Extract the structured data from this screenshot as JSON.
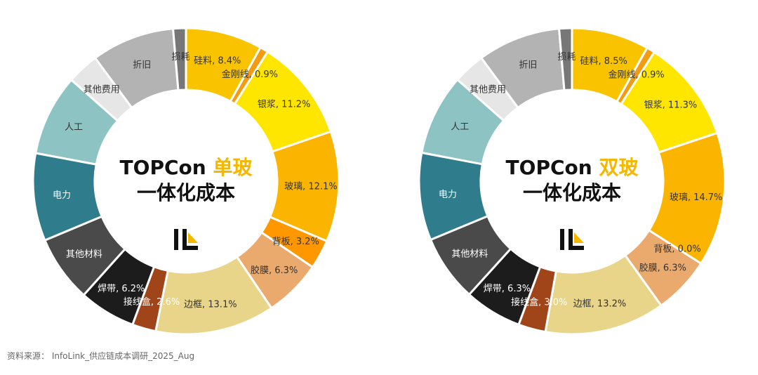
{
  "source_note": "资料来源： InfoLink_供应链成本调研_2025_Aug",
  "chart_data": [
    {
      "type": "donut",
      "title_line1_prefix": "TOPCon ",
      "title_line1_highlight": "单玻",
      "title_line2": "一体化成本",
      "highlight_color": "#F5B800",
      "slices": [
        {
          "name": "硅料",
          "value": 8.4,
          "label": "硅料, 8.4%",
          "color": "#F9C300"
        },
        {
          "name": "金刚线",
          "value": 0.9,
          "label": "金刚线, 0.9%",
          "color": "#F39C12"
        },
        {
          "name": "银浆",
          "value": 11.2,
          "label": "银浆, 11.2%",
          "color": "#FFE600"
        },
        {
          "name": "玻璃",
          "value": 12.1,
          "label": "玻璃, 12.1%",
          "color": "#FBB400"
        },
        {
          "name": "背板",
          "value": 3.2,
          "label": "背板, 3.2%",
          "color": "#FF9800"
        },
        {
          "name": "胶膜",
          "value": 6.3,
          "label": "胶膜, 6.3%",
          "color": "#EAAA6E"
        },
        {
          "name": "边框",
          "value": 13.1,
          "label": "边框, 13.1%",
          "color": "#E8D58A"
        },
        {
          "name": "接线盒",
          "value": 2.6,
          "label": "接线盒, 2.6%",
          "color": "#A0451A"
        },
        {
          "name": "焊带",
          "value": 6.2,
          "label": "焊带, 6.2%",
          "color": "#1C1C1C"
        },
        {
          "name": "其他材料",
          "value": 7.3,
          "label": "其他材料",
          "color": "#4A4A4A"
        },
        {
          "name": "电力",
          "value": 9.6,
          "label": "电力",
          "color": "#2E7C8C"
        },
        {
          "name": "人工",
          "value": 8.9,
          "label": "人工",
          "color": "#8EC3C4"
        },
        {
          "name": "其他费用",
          "value": 3.5,
          "label": "其他费用",
          "color": "#E6E6E6"
        },
        {
          "name": "折旧",
          "value": 9.1,
          "label": "折旧",
          "color": "#B3B3B3"
        },
        {
          "name": "损耗",
          "value": 1.4,
          "label": "损耗",
          "color": "#777777"
        }
      ]
    },
    {
      "type": "donut",
      "title_line1_prefix": "TOPCon ",
      "title_line1_highlight": "双玻",
      "title_line2": "一体化成本",
      "highlight_color": "#F5B800",
      "slices": [
        {
          "name": "硅料",
          "value": 8.5,
          "label": "硅料, 8.5%",
          "color": "#F9C300"
        },
        {
          "name": "金刚线",
          "value": 0.9,
          "label": "金刚线, 0.9%",
          "color": "#F39C12"
        },
        {
          "name": "银浆",
          "value": 11.3,
          "label": "银浆, 11.3%",
          "color": "#FFE600"
        },
        {
          "name": "玻璃",
          "value": 14.7,
          "label": "玻璃, 14.7%",
          "color": "#FBB400"
        },
        {
          "name": "背板",
          "value": 0.0,
          "label": "背板, 0.0%",
          "color": "#FF9800"
        },
        {
          "name": "胶膜",
          "value": 6.3,
          "label": "胶膜, 6.3%",
          "color": "#EAAA6E"
        },
        {
          "name": "边框",
          "value": 13.2,
          "label": "边框, 13.2%",
          "color": "#E8D58A"
        },
        {
          "name": "接线盒",
          "value": 3.0,
          "label": "接线盒, 3.0%",
          "color": "#A0451A"
        },
        {
          "name": "焊带",
          "value": 6.3,
          "label": "焊带, 6.3%",
          "color": "#1C1C1C"
        },
        {
          "name": "其他材料",
          "value": 7.3,
          "label": "其他材料",
          "color": "#4A4A4A"
        },
        {
          "name": "电力",
          "value": 9.6,
          "label": "电力",
          "color": "#2E7C8C"
        },
        {
          "name": "人工",
          "value": 8.9,
          "label": "人工",
          "color": "#8EC3C4"
        },
        {
          "name": "其他费用",
          "value": 3.5,
          "label": "其他费用",
          "color": "#E6E6E6"
        },
        {
          "name": "折旧",
          "value": 9.1,
          "label": "折旧",
          "color": "#B3B3B3"
        },
        {
          "name": "损耗",
          "value": 1.4,
          "label": "损耗",
          "color": "#777777"
        }
      ]
    }
  ]
}
